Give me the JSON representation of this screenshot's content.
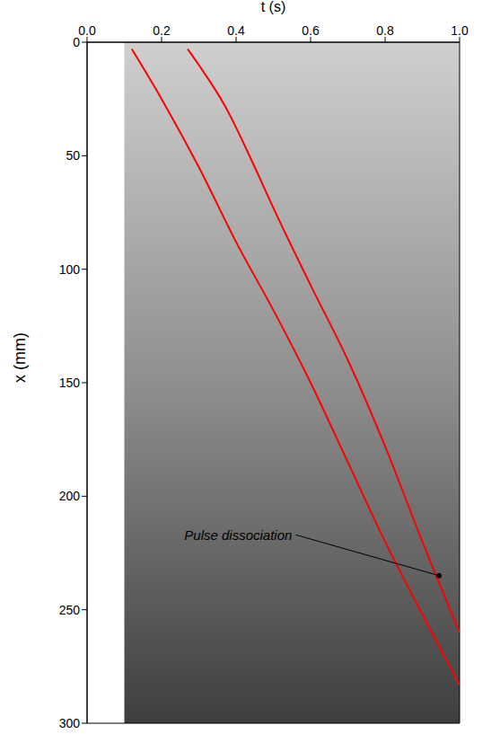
{
  "chart_data": {
    "type": "line",
    "x_label": "t (s)",
    "y_label": "x (mm)",
    "xlim": [
      0,
      1
    ],
    "xticks": [
      {
        "value": 0,
        "label": "0.0"
      },
      0.2,
      0.4,
      0.6,
      0.8,
      {
        "value": 1,
        "label": "1.0"
      }
    ],
    "ylim": [
      300,
      0
    ],
    "yticks": [
      0,
      50,
      100,
      150,
      200,
      250,
      300
    ],
    "grid": false,
    "image_xlim": [
      0.1,
      1
    ],
    "series": [
      {
        "color": "#ff0000",
        "line_style": "solid",
        "x": [
          0.12,
          0.2,
          0.3,
          0.4,
          0.5,
          0.6,
          0.7,
          0.8,
          0.9,
          1.0
        ],
        "values": [
          3,
          25,
          55,
          88,
          118,
          150,
          185,
          220,
          252,
          283
        ]
      },
      {
        "color": "#ff0000",
        "line_style": "solid",
        "x": [
          0.27,
          0.3,
          0.37,
          0.45,
          0.5,
          0.6,
          0.7,
          0.8,
          0.9,
          1.0
        ],
        "values": [
          3,
          10,
          28,
          55,
          73,
          107,
          140,
          178,
          220,
          260
        ]
      }
    ],
    "annotations": [
      {
        "text": "Pulse dissociation",
        "xy": [
          0.945,
          235
        ],
        "xytext": [
          0.56,
          217
        ]
      }
    ]
  }
}
